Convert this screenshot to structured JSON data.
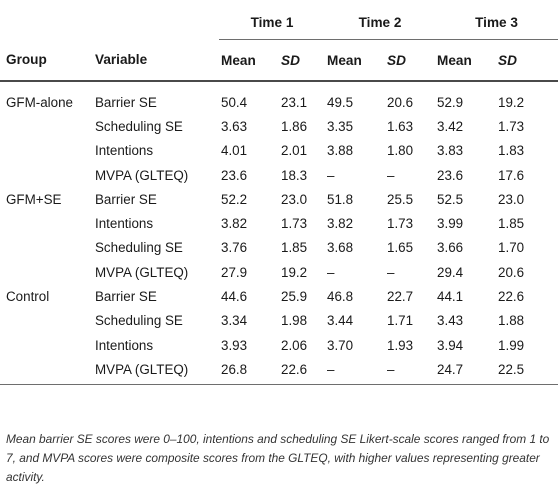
{
  "header": {
    "time_labels": [
      "Time 1",
      "Time 2",
      "Time 3"
    ],
    "group_label": "Group",
    "variable_label": "Variable",
    "mean_label": "Mean",
    "sd_label": "SD"
  },
  "rows": [
    {
      "group": "GFM-alone",
      "variable": "Barrier SE",
      "values": [
        "50.4",
        "23.1",
        "49.5",
        "20.6",
        "52.9",
        "19.2"
      ]
    },
    {
      "group": "",
      "variable": "Scheduling SE",
      "values": [
        "3.63",
        "1.86",
        "3.35",
        "1.63",
        "3.42",
        "1.73"
      ]
    },
    {
      "group": "",
      "variable": "Intentions",
      "values": [
        "4.01",
        "2.01",
        "3.88",
        "1.80",
        "3.83",
        "1.83"
      ]
    },
    {
      "group": "",
      "variable": "MVPA (GLTEQ)",
      "values": [
        "23.6",
        "18.3",
        "–",
        "–",
        "23.6",
        "17.6"
      ]
    },
    {
      "group": "GFM+SE",
      "variable": "Barrier SE",
      "values": [
        "52.2",
        "23.0",
        "51.8",
        "25.5",
        "52.5",
        "23.0"
      ]
    },
    {
      "group": "",
      "variable": "Intentions",
      "values": [
        "3.82",
        "1.73",
        "3.82",
        "1.73",
        "3.99",
        "1.85"
      ]
    },
    {
      "group": "",
      "variable": "Scheduling SE",
      "values": [
        "3.76",
        "1.85",
        "3.68",
        "1.65",
        "3.66",
        "1.70"
      ]
    },
    {
      "group": "",
      "variable": "MVPA (GLTEQ)",
      "values": [
        "27.9",
        "19.2",
        "–",
        "–",
        "29.4",
        "20.6"
      ]
    },
    {
      "group": "Control",
      "variable": "Barrier SE",
      "values": [
        "44.6",
        "25.9",
        "46.8",
        "22.7",
        "44.1",
        "22.6"
      ]
    },
    {
      "group": "",
      "variable": "Scheduling SE",
      "values": [
        "3.34",
        "1.98",
        "3.44",
        "1.71",
        "3.43",
        "1.88"
      ]
    },
    {
      "group": "",
      "variable": "Intentions",
      "values": [
        "3.93",
        "2.06",
        "3.70",
        "1.93",
        "3.94",
        "1.99"
      ]
    },
    {
      "group": "",
      "variable": "MVPA (GLTEQ)",
      "values": [
        "26.8",
        "22.6",
        "–",
        "–",
        "24.7",
        "22.5"
      ]
    }
  ],
  "note": "Mean barrier SE scores were 0–100, intentions and scheduling SE Likert-scale scores ranged from 1 to 7, and MVPA scores were composite scores from the GLTEQ, with higher values representing greater activity."
}
